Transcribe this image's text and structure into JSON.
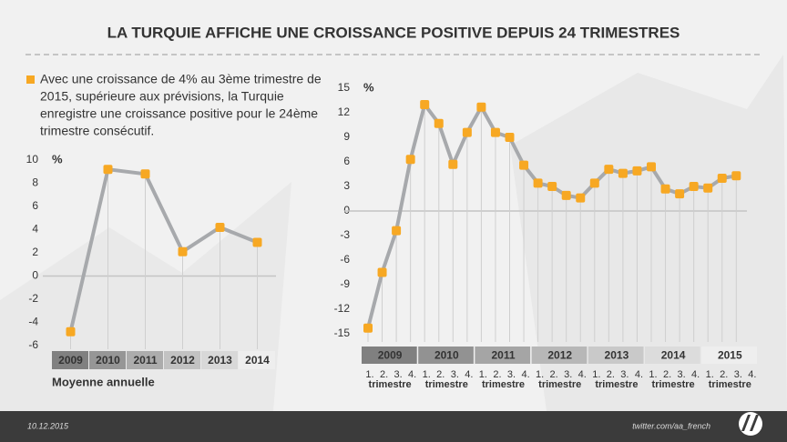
{
  "header": {
    "title": "LA TURQUIE AFFICHE UNE CROISSANCE POSITIVE DEPUIS 24 TRIMESTRES"
  },
  "note": {
    "lines": [
      "Avec une croissance de 4% au 3ème trimestre de",
      "2015, supérieure aux prévisions, la Turquie",
      "enregistre une croissance positive pour le 24ème",
      "trimestre consécutif."
    ]
  },
  "footer": {
    "date": "10.12.2015",
    "source": "twitter.com/aa_french"
  },
  "chart_data": [
    {
      "type": "line",
      "y_label": "%",
      "x_label": "Moyenne annuelle",
      "categories": [
        "2009",
        "2010",
        "2011",
        "2012",
        "2013",
        "2014"
      ],
      "values": [
        -4.8,
        9.2,
        8.8,
        2.1,
        4.2,
        2.9
      ],
      "line_color": "#a7a9ac",
      "marker_color": "#f7a823",
      "ylim": [
        -6,
        10
      ],
      "yticks": [
        -6,
        -4,
        -2,
        0,
        2,
        4,
        6,
        8,
        10
      ]
    },
    {
      "type": "line",
      "y_label": "%",
      "groups": [
        {
          "label": "2009",
          "sublabel": "trimestre"
        },
        {
          "label": "2010",
          "sublabel": "trimestre"
        },
        {
          "label": "2011",
          "sublabel": "trimestre"
        },
        {
          "label": "2012",
          "sublabel": "trimestre"
        },
        {
          "label": "2013",
          "sublabel": "trimestre"
        },
        {
          "label": "2014",
          "sublabel": "trimestre"
        },
        {
          "label": "2015",
          "sublabel": "trimestre"
        }
      ],
      "categories": [
        "1.",
        "2.",
        "3.",
        "4.",
        "1.",
        "2.",
        "3.",
        "4.",
        "1.",
        "2.",
        "3.",
        "4.",
        "1.",
        "2.",
        "3.",
        "4.",
        "1.",
        "2.",
        "3.",
        "4.",
        "1.",
        "2.",
        "3.",
        "4.",
        "1.",
        "2.",
        "3.",
        "4."
      ],
      "values": [
        -14.3,
        -7.5,
        -2.4,
        6.3,
        13.0,
        10.7,
        5.7,
        9.6,
        12.7,
        9.6,
        9.0,
        5.6,
        3.4,
        3.0,
        1.9,
        1.6,
        3.4,
        5.1,
        4.6,
        4.9,
        5.4,
        2.7,
        2.1,
        3.0,
        2.8,
        4.0,
        4.3,
        null
      ],
      "line_color": "#a7a9ac",
      "marker_color": "#f7a823",
      "ylim": [
        -15,
        15
      ],
      "yticks": [
        -15,
        -12,
        -9,
        -6,
        -3,
        0,
        3,
        6,
        9,
        12,
        15
      ]
    }
  ]
}
